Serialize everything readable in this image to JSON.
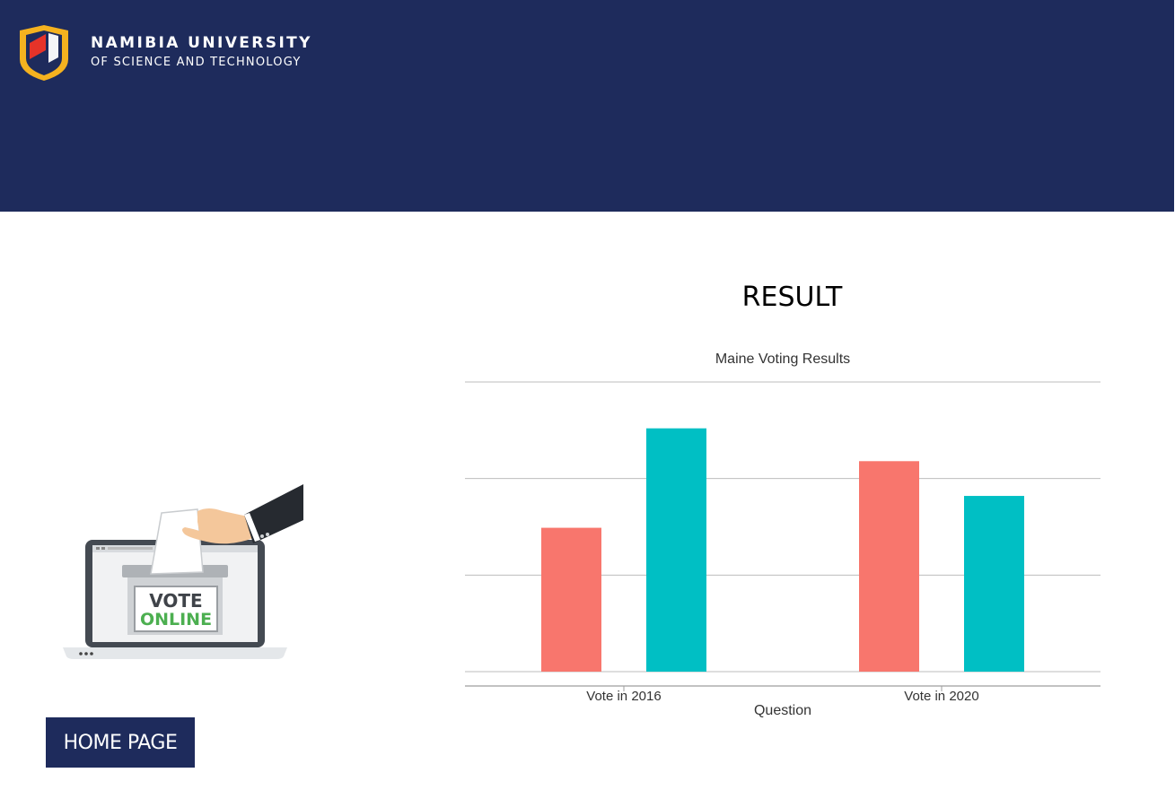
{
  "header": {
    "logo_line1": "NAMIBIA UNIVERSITY",
    "logo_line2": "OF SCIENCE AND TECHNOLOGY",
    "background": "#1e2b5c"
  },
  "main": {
    "heading": "RESULT"
  },
  "illustration": {
    "vote_word": "VOTE",
    "online_word": "ONLINE"
  },
  "nav": {
    "home_label": "HOME PAGE"
  },
  "chart_data": {
    "type": "bar",
    "title": "Maine Voting Results",
    "xlabel": "Question",
    "ylabel": "",
    "categories": [
      "Vote in 2016",
      "Vote in 2020"
    ],
    "series": [
      {
        "values": [
          1.49,
          2.18
        ],
        "color": "#f8766d"
      },
      {
        "values": [
          2.52,
          1.82
        ],
        "color": "#00bfc4"
      }
    ],
    "ylim": [
      0,
      3
    ],
    "grid": true,
    "legend": "none"
  }
}
